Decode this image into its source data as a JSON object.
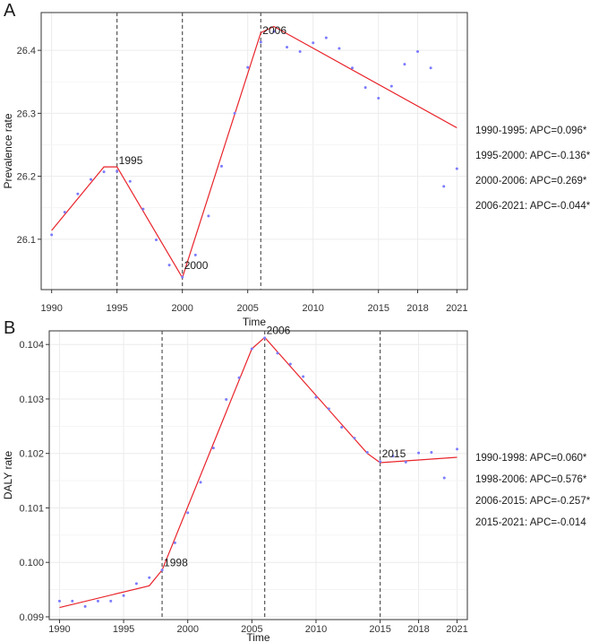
{
  "colors": {
    "fit_line": "#e8232a",
    "observed_points": "#7b7bff",
    "grid": "#ebebeb",
    "breakpoint_line": "#555555"
  },
  "chart_data": [
    {
      "panel": "A",
      "type": "scatter",
      "xlabel": "Time",
      "ylabel": "Prevalence rate",
      "xlim": [
        1989.2,
        2021.8
      ],
      "ylim": [
        26.02,
        26.46
      ],
      "x_ticks": [
        1990,
        1995,
        2000,
        2005,
        2010,
        2015,
        2018,
        2021
      ],
      "y_ticks": [
        26.1,
        26.2,
        26.3,
        26.4
      ],
      "grid": true,
      "observed": {
        "x": [
          1990,
          1991,
          1992,
          1993,
          1994,
          1995,
          1996,
          1997,
          1998,
          1999,
          2000,
          2001,
          2002,
          2003,
          2004,
          2005,
          2006,
          2007,
          2008,
          2009,
          2010,
          2011,
          2012,
          2013,
          2014,
          2015,
          2016,
          2017,
          2018,
          2019,
          2020,
          2021
        ],
        "y": [
          26.107,
          26.143,
          26.172,
          26.195,
          26.207,
          26.208,
          26.192,
          26.148,
          26.099,
          26.059,
          26.04,
          26.075,
          26.137,
          26.216,
          26.3,
          26.373,
          26.413,
          26.43,
          26.405,
          26.398,
          26.412,
          26.42,
          26.403,
          26.372,
          26.341,
          26.324,
          26.343,
          26.378,
          26.398,
          26.372,
          26.184,
          26.212
        ]
      },
      "fitted": {
        "x": [
          1990,
          1994,
          1995,
          2000,
          2006,
          2007,
          2021
        ],
        "y": [
          26.114,
          26.215,
          26.215,
          26.039,
          26.428,
          26.438,
          26.277
        ]
      },
      "breakpoints": [
        {
          "x": 1995,
          "label": "1995",
          "label_y": 26.214
        },
        {
          "x": 2000,
          "label": "2000",
          "label_y": 26.047
        },
        {
          "x": 2006,
          "label": "2006",
          "label_y": 26.42
        }
      ],
      "apc_labels": [
        "1990-1995: APC=0.096*",
        "1995-2000: APC=-0.136*",
        "2000-2006: APC=0.269*",
        "2006-2021: APC=-0.044*"
      ]
    },
    {
      "panel": "B",
      "type": "scatter",
      "xlabel": "Time",
      "ylabel": "DALY rate",
      "xlim": [
        1989.2,
        2021.8
      ],
      "ylim": [
        0.09895,
        0.10425
      ],
      "x_ticks": [
        1990,
        1995,
        2000,
        2005,
        2010,
        2015,
        2018,
        2021
      ],
      "y_ticks": [
        0.099,
        0.1,
        0.101,
        0.102,
        0.103,
        0.104
      ],
      "y_tick_labels": [
        "0.099",
        "0.100",
        "0.101",
        "0.102",
        "0.103",
        "0.104"
      ],
      "grid": true,
      "observed": {
        "x": [
          1990,
          1991,
          1992,
          1993,
          1994,
          1995,
          1996,
          1997,
          1998,
          1999,
          2000,
          2001,
          2002,
          2003,
          2004,
          2005,
          2006,
          2007,
          2008,
          2009,
          2010,
          2011,
          2012,
          2013,
          2014,
          2015,
          2016,
          2017,
          2018,
          2019,
          2020,
          2021
        ],
        "y": [
          0.09929,
          0.09929,
          0.09919,
          0.09929,
          0.09929,
          0.09939,
          0.09961,
          0.09972,
          0.09986,
          0.10036,
          0.10091,
          0.10147,
          0.1021,
          0.10299,
          0.10339,
          0.10392,
          0.10412,
          0.10384,
          0.10364,
          0.10341,
          0.10303,
          0.10282,
          0.10248,
          0.10228,
          0.10202,
          0.10185,
          0.10195,
          0.10184,
          0.10201,
          0.10202,
          0.10155,
          0.10208
        ]
      },
      "fitted": {
        "x": [
          1990,
          1997,
          1998,
          2005,
          2006,
          2014,
          2015,
          2021
        ],
        "y": [
          0.09917,
          0.09957,
          0.09986,
          0.10392,
          0.10413,
          0.102,
          0.10183,
          0.10193
        ]
      },
      "breakpoints": [
        {
          "x": 1998,
          "label": "1998",
          "label_y": 0.09986
        },
        {
          "x": 2006,
          "label": "2006",
          "label_y": 0.10413
        },
        {
          "x": 2015,
          "label": "2015",
          "label_y": 0.10186
        }
      ],
      "apc_labels": [
        "1990-1998: APC=0.060*",
        "1998-2006: APC=0.576*",
        "2006-2015: APC=-0.257*",
        "2015-2021: APC=-0.014"
      ]
    }
  ]
}
